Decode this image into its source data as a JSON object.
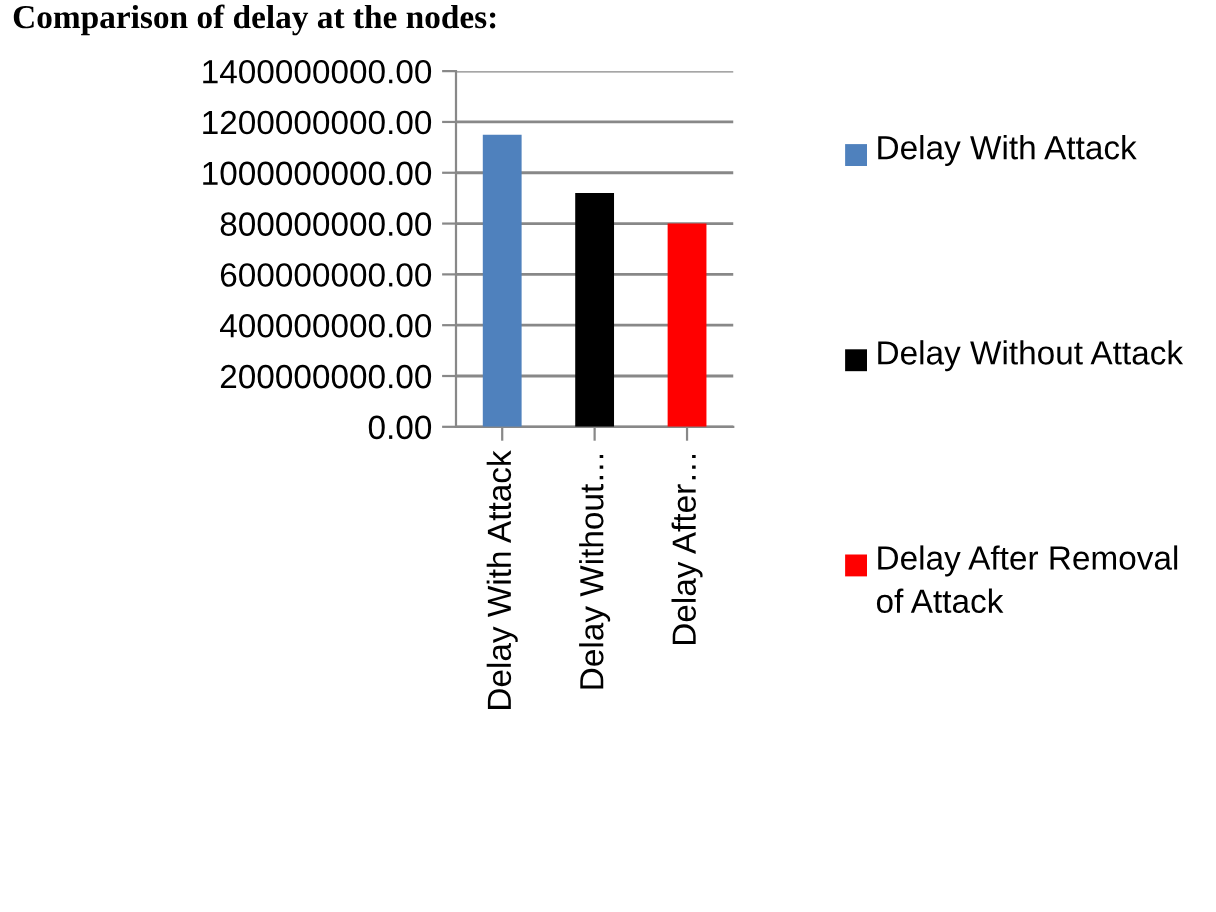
{
  "chart_data": {
    "type": "bar",
    "title": "Comparison of delay at the nodes:",
    "categories": [
      "Delay With Attack",
      "Delay Without…",
      "Delay After…"
    ],
    "series": [
      {
        "name": "Delay With Attack",
        "color": "#4f81bd",
        "values": [
          1150000000,
          null,
          null
        ]
      },
      {
        "name": "Delay Without Attack",
        "color": "#000000",
        "values": [
          null,
          920000000,
          null
        ]
      },
      {
        "name": "Delay After Removal of Attack",
        "color": "#ff0000",
        "values": [
          null,
          null,
          800000000
        ]
      }
    ],
    "ylim": [
      0,
      1400000000
    ],
    "yticks": [
      {
        "value": 0,
        "label": "0.00"
      },
      {
        "value": 200000000,
        "label": "200000000.00"
      },
      {
        "value": 400000000,
        "label": "400000000.00"
      },
      {
        "value": 600000000,
        "label": "600000000.00"
      },
      {
        "value": 800000000,
        "label": "800000000.00"
      },
      {
        "value": 1000000000,
        "label": "1000000000.00"
      },
      {
        "value": 1200000000,
        "label": "1200000000.00"
      },
      {
        "value": 1400000000,
        "label": "1400000000.00"
      }
    ],
    "grid": "y",
    "legend": "right"
  }
}
